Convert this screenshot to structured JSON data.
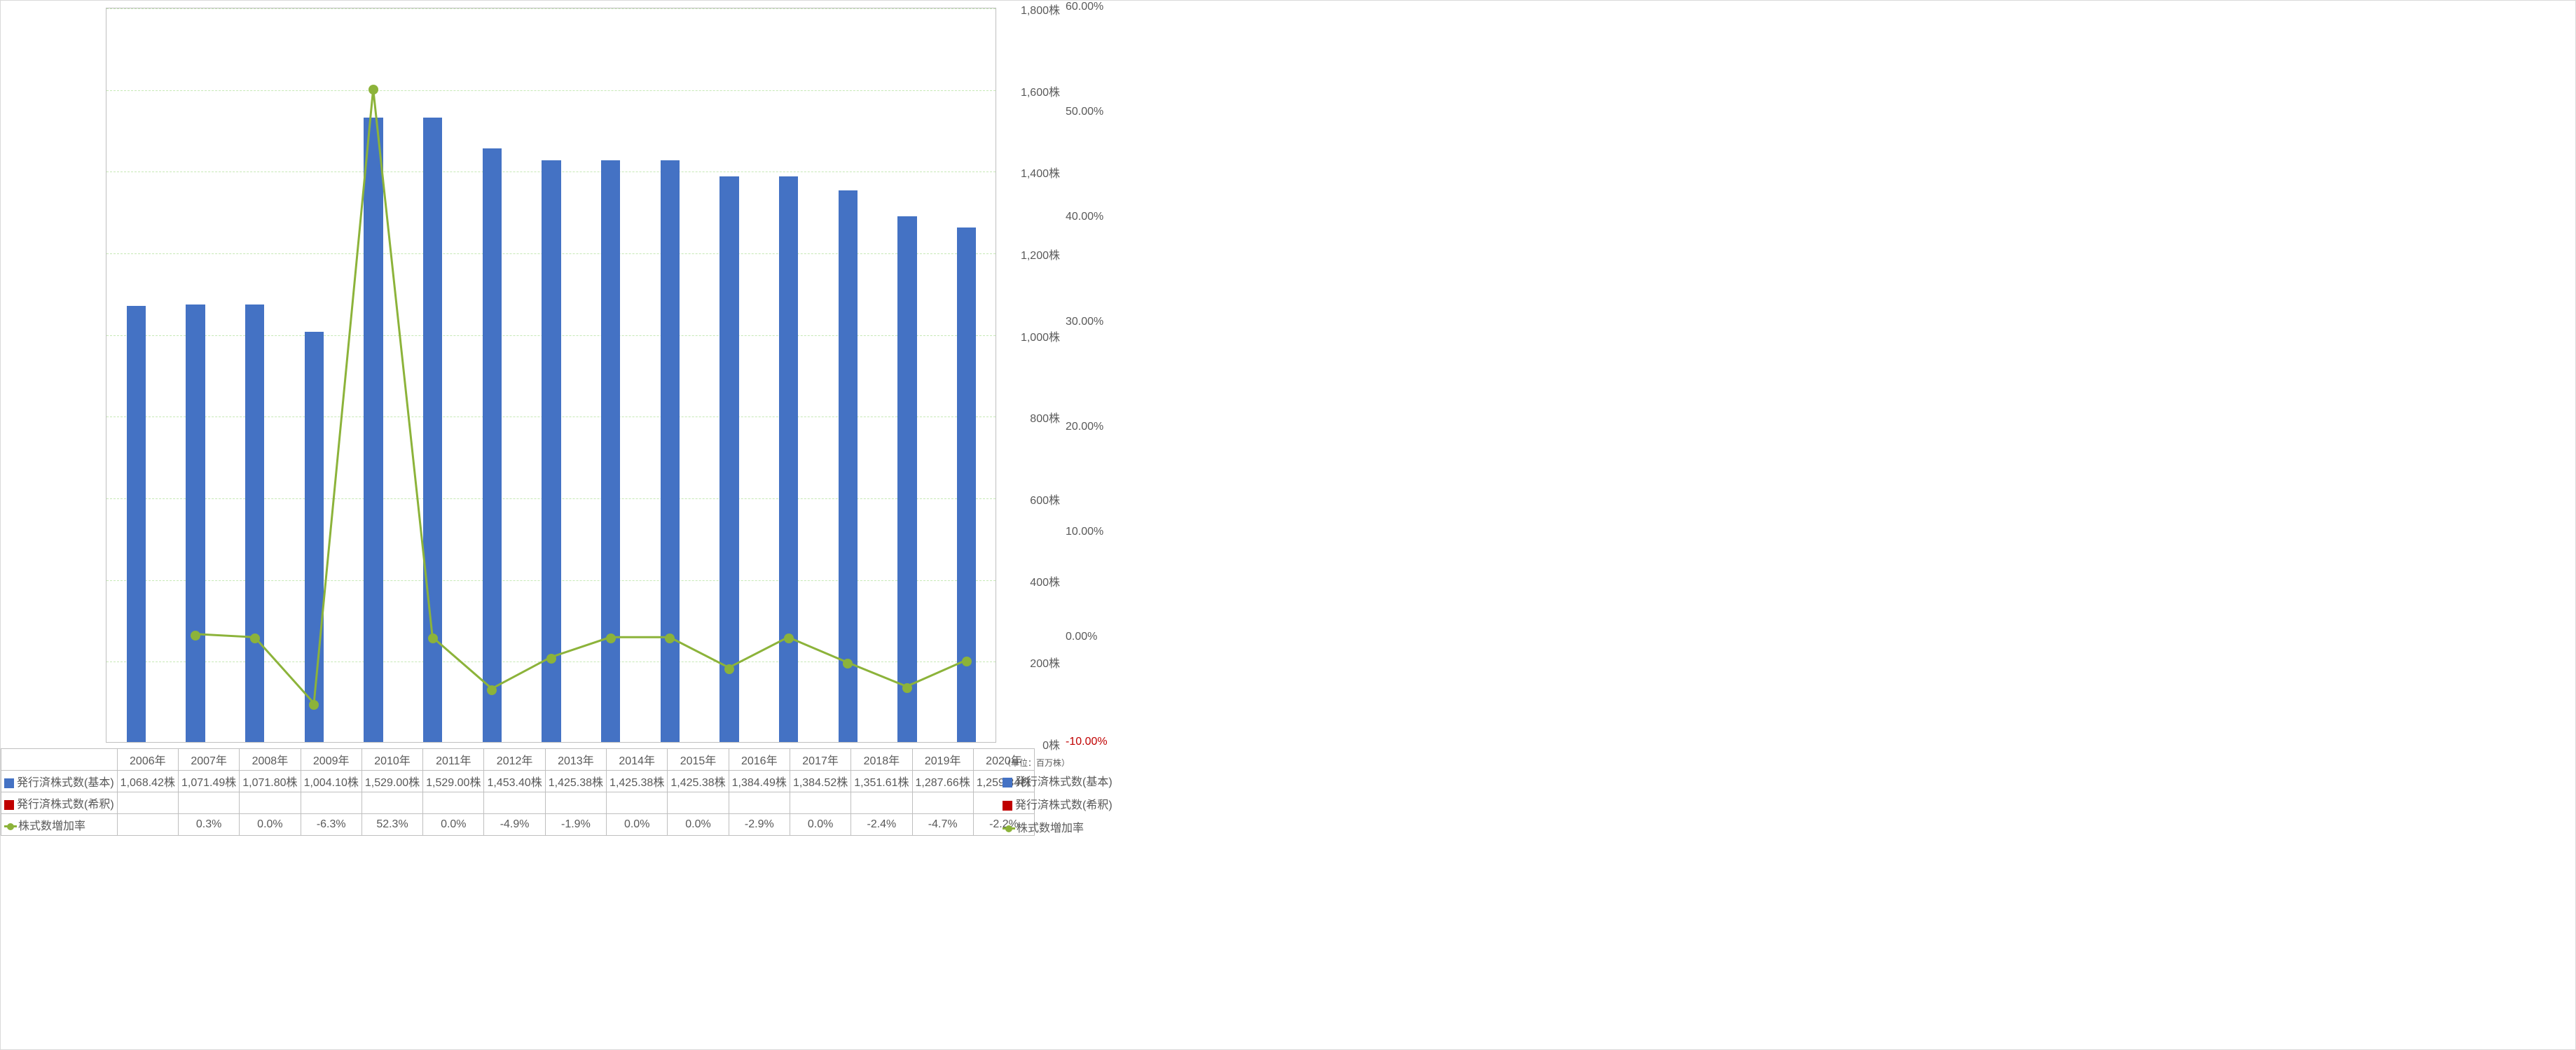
{
  "unit_note": "（単位：百万株）",
  "chart": {
    "type": "combo-bar-line",
    "categories": [
      "2006年",
      "2007年",
      "2008年",
      "2009年",
      "2010年",
      "2011年",
      "2012年",
      "2013年",
      "2014年",
      "2015年",
      "2016年",
      "2017年",
      "2018年",
      "2019年",
      "2020年"
    ],
    "bars": {
      "label": "発行済株式数(基本)",
      "values": [
        1068.42,
        1071.49,
        1071.8,
        1004.1,
        1529.0,
        1529.0,
        1453.4,
        1425.38,
        1425.38,
        1425.38,
        1384.49,
        1384.52,
        1351.61,
        1287.66,
        1259.34
      ],
      "display": [
        "1,068.42株",
        "1,071.49株",
        "1,071.80株",
        "1,004.10株",
        "1,529.00株",
        "1,529.00株",
        "1,453.40株",
        "1,425.38株",
        "1,425.38株",
        "1,425.38株",
        "1,384.49株",
        "1,384.52株",
        "1,351.61株",
        "1,287.66株",
        "1,259.34株"
      ],
      "color": "#4472c4",
      "bar_width_frac": 0.32
    },
    "bars2": {
      "label": "発行済株式数(希釈)",
      "color": "#c00000"
    },
    "line": {
      "label": "株式数増加率",
      "values": [
        null,
        0.3,
        0.0,
        -6.3,
        52.3,
        0.0,
        -4.9,
        -1.9,
        0.0,
        0.0,
        -2.9,
        0.0,
        -2.4,
        -4.7,
        -2.2
      ],
      "display": [
        "",
        "0.3%",
        "0.0%",
        "-6.3%",
        "52.3%",
        "0.0%",
        "-4.9%",
        "-1.9%",
        "0.0%",
        "0.0%",
        "-2.9%",
        "0.0%",
        "-2.4%",
        "-4.7%",
        "-2.2%"
      ],
      "color": "#8cb33a",
      "marker_color": "#8cb33a",
      "line_width": 3,
      "marker_size": 14
    },
    "y_left": {
      "min": 0,
      "max": 1800,
      "step": 200,
      "ticks": [
        "0株",
        "200株",
        "400株",
        "600株",
        "800株",
        "1,000株",
        "1,200株",
        "1,400株",
        "1,600株",
        "1,800株"
      ]
    },
    "y_right": {
      "min": -10,
      "max": 60,
      "step": 10,
      "ticks": [
        "-10.00%",
        "0.00%",
        "10.00%",
        "20.00%",
        "30.00%",
        "40.00%",
        "50.00%",
        "60.00%"
      ]
    },
    "grid_color": "#c6e8b5",
    "plot_bg": "#ffffff"
  }
}
